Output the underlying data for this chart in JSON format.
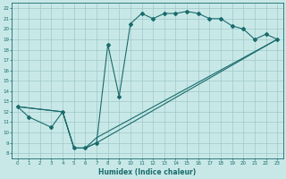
{
  "xlabel": "Humidex (Indice chaleur)",
  "bg_color": "#c8e8e8",
  "grid_color": "#a0c8c8",
  "line_color": "#1a6b6b",
  "xlim": [
    -0.5,
    23.5
  ],
  "ylim": [
    7.5,
    22.5
  ],
  "yticks": [
    8,
    9,
    10,
    11,
    12,
    13,
    14,
    15,
    16,
    17,
    18,
    19,
    20,
    21,
    22
  ],
  "xticks": [
    0,
    1,
    2,
    3,
    4,
    5,
    6,
    7,
    8,
    9,
    10,
    11,
    12,
    13,
    14,
    15,
    16,
    17,
    18,
    19,
    20,
    21,
    22,
    23
  ],
  "line1_x": [
    0,
    1,
    3,
    4,
    5,
    6,
    7,
    8,
    9,
    10,
    11,
    12,
    13,
    14,
    15,
    16,
    17,
    18,
    19,
    20,
    21,
    22,
    23
  ],
  "line1_y": [
    12.5,
    11.5,
    10.5,
    12.0,
    8.5,
    8.5,
    9.0,
    18.5,
    13.5,
    20.5,
    21.5,
    21.0,
    21.5,
    21.5,
    21.7,
    21.5,
    21.0,
    21.0,
    20.3,
    20.0,
    19.0,
    19.5,
    19.0
  ],
  "line2_x": [
    0,
    4,
    5,
    6,
    7,
    23
  ],
  "line2_y": [
    12.5,
    12.0,
    8.5,
    8.5,
    9.0,
    19.0
  ],
  "line3_x": [
    0,
    4,
    5,
    6,
    7,
    23
  ],
  "line3_y": [
    12.5,
    12.0,
    8.5,
    8.5,
    9.5,
    19.0
  ]
}
